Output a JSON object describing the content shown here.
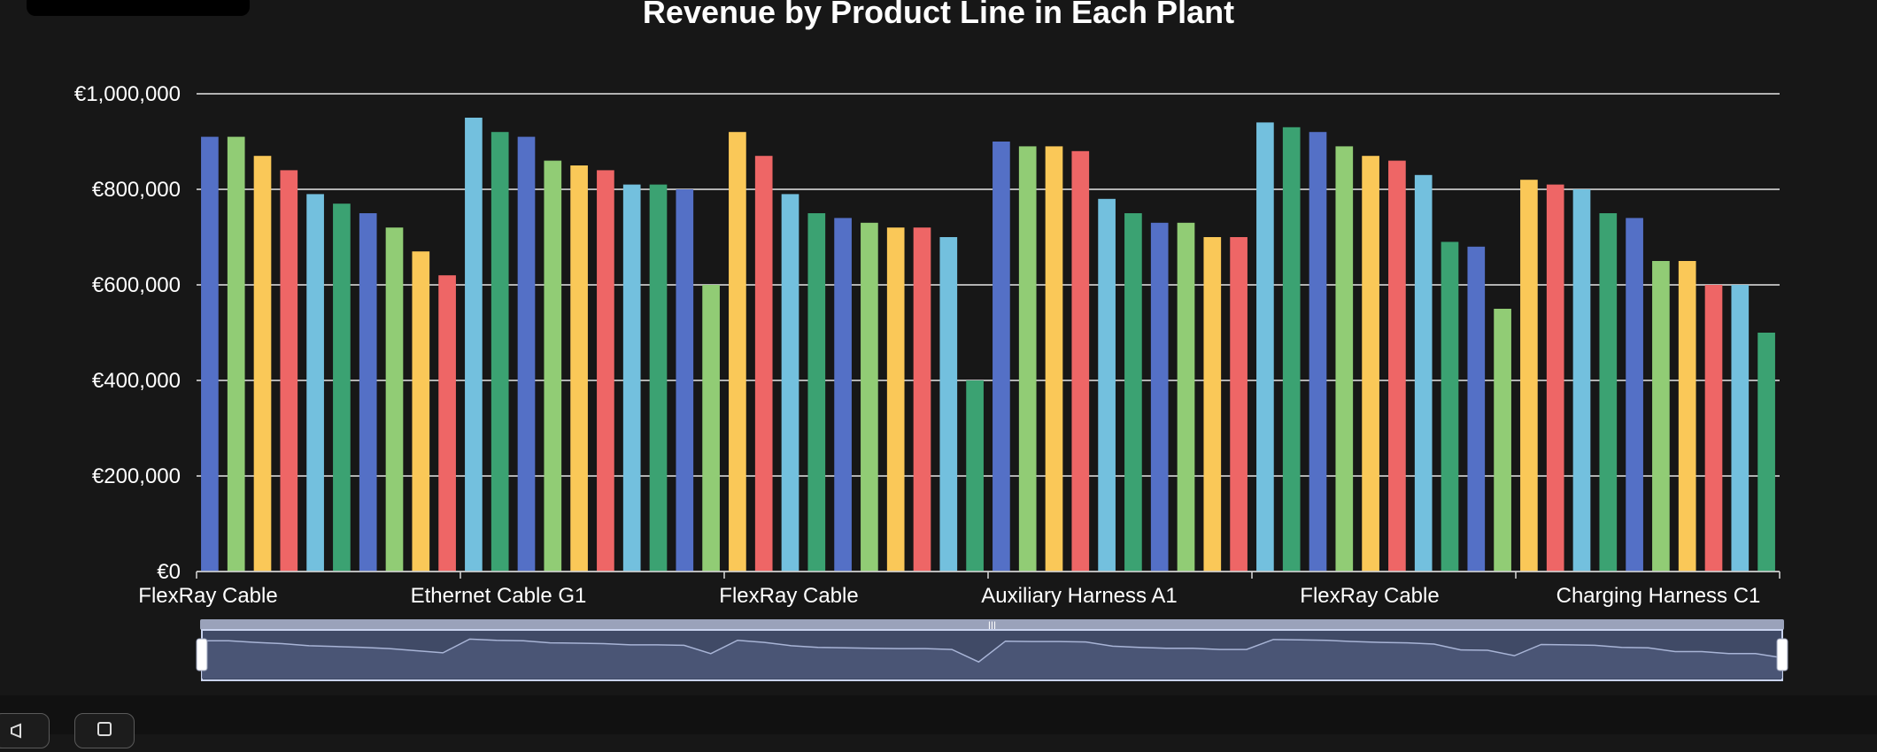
{
  "chart_data": {
    "type": "bar",
    "title": "Revenue by Product Line in Each Plant",
    "xlabel": "",
    "ylabel": "",
    "ylim": [
      0,
      1000000
    ],
    "yticks": [
      0,
      200000,
      400000,
      600000,
      800000,
      1000000
    ],
    "ytick_labels": [
      "€0",
      "€200,000",
      "€400,000",
      "€600,000",
      "€800,000",
      "€1,000,000"
    ],
    "xtick_labels": [
      "FlexRay Cable",
      "Ethernet Cable G1",
      "FlexRay Cable",
      "Auxiliary Harness A1",
      "FlexRay Cable",
      "Charging Harness C1"
    ],
    "grid": true,
    "has_data_zoom": true,
    "values": [
      910000,
      910000,
      870000,
      840000,
      790000,
      770000,
      750000,
      720000,
      670000,
      620000,
      950000,
      920000,
      910000,
      860000,
      850000,
      840000,
      810000,
      810000,
      800000,
      600000,
      920000,
      870000,
      790000,
      750000,
      740000,
      730000,
      720000,
      720000,
      700000,
      400000,
      900000,
      890000,
      890000,
      880000,
      780000,
      750000,
      730000,
      730000,
      700000,
      700000,
      940000,
      930000,
      920000,
      890000,
      870000,
      860000,
      830000,
      690000,
      680000,
      550000,
      820000,
      810000,
      800000,
      750000,
      740000,
      650000,
      650000,
      600000,
      600000,
      500000
    ],
    "palette": [
      "#5470c6",
      "#91cc75",
      "#fac858",
      "#ee6666",
      "#73c0de",
      "#3ba272"
    ]
  },
  "ui": {
    "toolbar_left_icon": "megaphone-icon",
    "toolbar_right_icon": "device-icon"
  }
}
